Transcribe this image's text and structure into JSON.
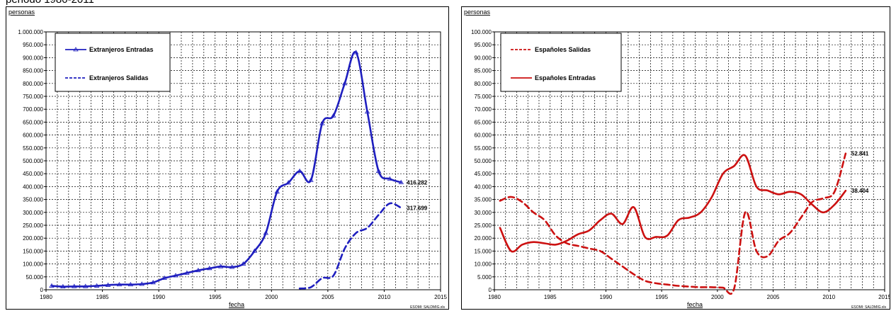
{
  "heading": "periodo 1980-2011",
  "chart_data": [
    {
      "type": "line",
      "ylabel": "personas",
      "xlabel": "fecha",
      "source": "ESOMI: SALDMIG.xls",
      "xlim": [
        1980,
        2015
      ],
      "ylim": [
        0,
        1000000
      ],
      "xticks": [
        1980,
        1985,
        1990,
        1995,
        2000,
        2005,
        2010,
        2015
      ],
      "xtick_labels": [
        "1980",
        "1985",
        "1990",
        "1995",
        "2000",
        "2005",
        "2010",
        "2015"
      ],
      "yticks": [
        0,
        50000,
        100000,
        150000,
        200000,
        250000,
        300000,
        350000,
        400000,
        450000,
        500000,
        550000,
        600000,
        650000,
        700000,
        750000,
        800000,
        850000,
        900000,
        950000,
        1000000
      ],
      "ytick_labels": [
        "0",
        "50.000",
        "100.000",
        "150.000",
        "200.000",
        "250.000",
        "300.000",
        "350.000",
        "400.000",
        "450.000",
        "500.000",
        "550.000",
        "600.000",
        "650.000",
        "700.000",
        "750.000",
        "800.000",
        "850.000",
        "900.000",
        "950.000",
        "1.000.000"
      ],
      "grid": true,
      "legend_position": "top-left",
      "series": [
        {
          "name": "Extranjeros Entradas",
          "color": "#1f1fbf",
          "style": "solid-marker",
          "x": [
            1980.5,
            1981.5,
            1982.5,
            1983.5,
            1984.5,
            1985.5,
            1986.5,
            1987.5,
            1988.5,
            1989.5,
            1990.5,
            1991.5,
            1992.5,
            1993.5,
            1994.5,
            1995.5,
            1996.5,
            1997.5,
            1998.5,
            1999.5,
            2000.5,
            2001.5,
            2002.5,
            2003.5,
            2004.5,
            2005.5,
            2006.5,
            2007.5,
            2008.5,
            2009.5,
            2010.5,
            2011.5
          ],
          "y": [
            15000,
            12000,
            13000,
            13000,
            15000,
            18000,
            20000,
            20000,
            22000,
            28000,
            45000,
            55000,
            65000,
            75000,
            83000,
            90000,
            88000,
            100000,
            150000,
            220000,
            380000,
            415000,
            460000,
            425000,
            645000,
            675000,
            800000,
            920000,
            690000,
            460000,
            430000,
            416282
          ],
          "end_label": "416.282"
        },
        {
          "name": "Extranjeros Salidas",
          "color": "#1f1fbf",
          "style": "dashed",
          "x": [
            2002.5,
            2003.5,
            2004.5,
            2005.5,
            2006.5,
            2007.5,
            2008.5,
            2009.5,
            2010.5,
            2011.5
          ],
          "y": [
            5000,
            10000,
            45000,
            55000,
            160000,
            220000,
            240000,
            290000,
            335000,
            317699
          ],
          "end_label": "317.699"
        }
      ]
    },
    {
      "type": "line",
      "ylabel": "personas",
      "xlabel": "fecha",
      "source": "ESOMI: SALDMIG.xls",
      "xlim": [
        1980,
        2015
      ],
      "ylim": [
        0,
        100000
      ],
      "xticks": [
        1980,
        1985,
        1990,
        1995,
        2000,
        2005,
        2010,
        2015
      ],
      "xtick_labels": [
        "1980",
        "1985",
        "1990",
        "1995",
        "2000",
        "2005",
        "2010",
        "2015"
      ],
      "yticks": [
        0,
        5000,
        10000,
        15000,
        20000,
        25000,
        30000,
        35000,
        40000,
        45000,
        50000,
        55000,
        60000,
        65000,
        70000,
        75000,
        80000,
        85000,
        90000,
        95000,
        100000
      ],
      "ytick_labels": [
        "0",
        "5.000",
        "10.000",
        "15.000",
        "20.000",
        "25.000",
        "30.000",
        "35.000",
        "40.000",
        "45.000",
        "50.000",
        "55.000",
        "60.000",
        "65.000",
        "70.000",
        "75.000",
        "80.000",
        "85.000",
        "90.000",
        "95.000",
        "100.000"
      ],
      "grid": true,
      "legend_position": "top-left",
      "series": [
        {
          "name": "Españoles Salidas",
          "color": "#cc1111",
          "style": "dashed",
          "x": [
            1980.5,
            1981.5,
            1982.5,
            1983.5,
            1984.5,
            1985.5,
            1986.5,
            1987.5,
            1988.5,
            1989.5,
            1990.5,
            1991.5,
            1992.5,
            1993.5,
            1994.5,
            1995.5,
            1996.5,
            1997.5,
            1998.5,
            1999.5,
            2000.5,
            2001.5,
            2002.5,
            2003.5,
            2004.5,
            2005.5,
            2006.5,
            2007.5,
            2008.5,
            2009.5,
            2010.5,
            2011.5
          ],
          "y": [
            34500,
            36000,
            34000,
            30000,
            27000,
            21000,
            18000,
            17000,
            16000,
            15000,
            12000,
            9000,
            6000,
            3500,
            2500,
            2000,
            1500,
            1200,
            1000,
            1000,
            800,
            500,
            30000,
            15000,
            13000,
            19000,
            22000,
            28000,
            34000,
            35500,
            38000,
            52841
          ],
          "end_label": "52.841"
        },
        {
          "name": "Españoles Entradas",
          "color": "#cc1111",
          "style": "solid",
          "x": [
            1980.5,
            1981.5,
            1982.5,
            1983.5,
            1984.5,
            1985.5,
            1986.5,
            1987.5,
            1988.5,
            1989.5,
            1990.5,
            1991.5,
            1992.5,
            1993.5,
            1994.5,
            1995.5,
            1996.5,
            1997.5,
            1998.5,
            1999.5,
            2000.5,
            2001.5,
            2002.5,
            2003.5,
            2004.5,
            2005.5,
            2006.5,
            2007.5,
            2008.5,
            2009.5,
            2010.5,
            2011.5
          ],
          "y": [
            24000,
            15000,
            17500,
            18500,
            18000,
            17500,
            19000,
            21500,
            23000,
            27000,
            29500,
            25500,
            32000,
            20500,
            20500,
            21000,
            27000,
            28000,
            30000,
            36000,
            45000,
            48000,
            52000,
            40000,
            38500,
            37000,
            38000,
            37000,
            33000,
            30000,
            33000,
            38404
          ],
          "end_label": "38.404"
        }
      ]
    }
  ]
}
